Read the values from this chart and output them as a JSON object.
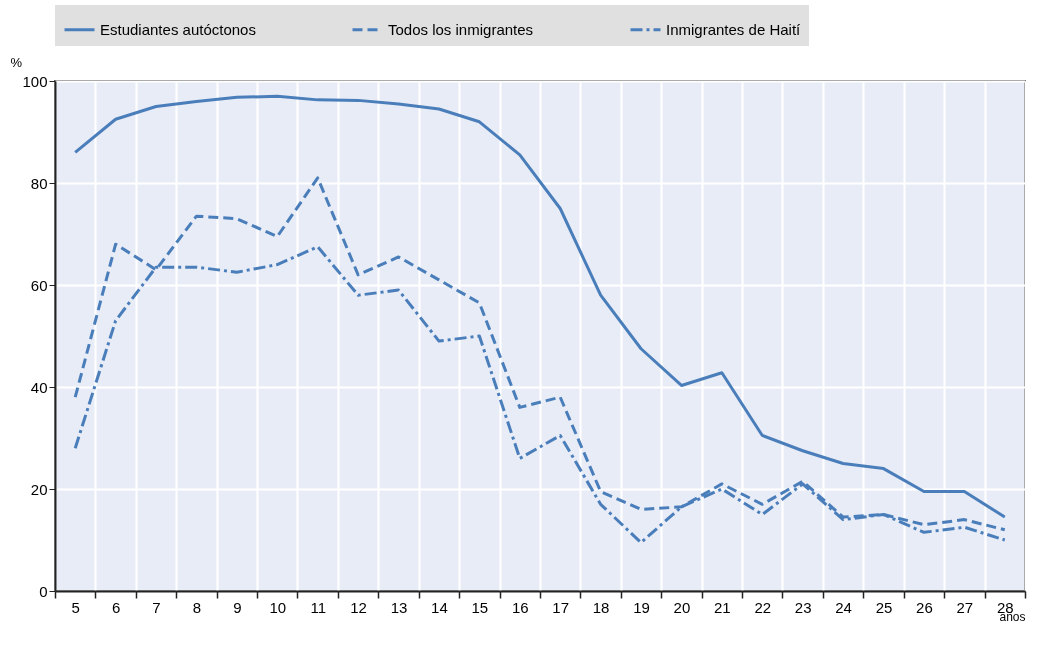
{
  "chart_data": {
    "type": "line",
    "ylabel": "%",
    "xlabel": "años",
    "categories": [
      "5",
      "6",
      "7",
      "8",
      "9",
      "10",
      "11",
      "12",
      "13",
      "14",
      "15",
      "16",
      "17",
      "18",
      "19",
      "20",
      "21",
      "22",
      "23",
      "24",
      "25",
      "26",
      "27",
      "28"
    ],
    "series": [
      {
        "name": "Estudiantes autóctonos",
        "color": "#4a7ebb",
        "line_style": "solid",
        "values": [
          86,
          92.5,
          95,
          96,
          96.8,
          97,
          96.3,
          96.2,
          95.5,
          94.5,
          92,
          85.5,
          75,
          58,
          47.5,
          40.3,
          42.8,
          30.5,
          27.5,
          25,
          24,
          19.5,
          19.5,
          14.5
        ]
      },
      {
        "name": "Todos los inmigrantes",
        "color": "#4a7ebb",
        "line_style": "dashed",
        "values": [
          38,
          68,
          63,
          73.5,
          73,
          69.5,
          81,
          62,
          65.5,
          61,
          56.5,
          36,
          38,
          19.5,
          16,
          16.5,
          21,
          17,
          21.5,
          14.5,
          15,
          13,
          14,
          12
        ]
      },
      {
        "name": "Inmigrantes de Haití",
        "color": "#4a7ebb",
        "line_style": "dashdot",
        "values": [
          28,
          53,
          63.5,
          63.5,
          62.5,
          64,
          67.5,
          58,
          59,
          49,
          50,
          26,
          30.5,
          17,
          9.5,
          16.5,
          20,
          15,
          21,
          14,
          15,
          11.5,
          12.5,
          10
        ]
      }
    ],
    "ylim": [
      0,
      100
    ],
    "yticks": [
      0,
      20,
      40,
      60,
      80,
      100
    ],
    "grid": true,
    "legend": "top"
  }
}
